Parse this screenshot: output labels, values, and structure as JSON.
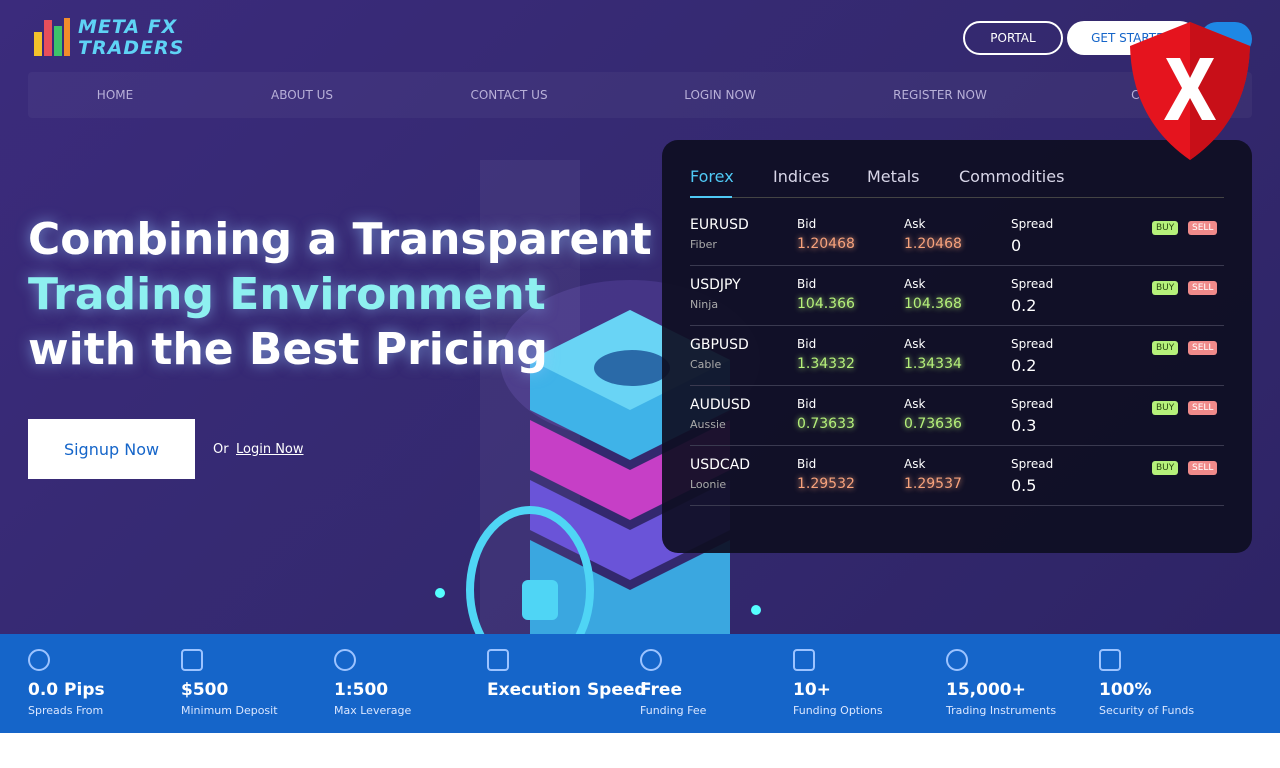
{
  "header": {
    "logo": [
      "META FX",
      "TRADERS"
    ],
    "buttons": [
      "PORTAL",
      "GET STARTED"
    ]
  },
  "nav": [
    "HOME",
    "ABOUT US",
    "CONTACT US",
    "LOGIN NOW",
    "REGISTER NOW",
    "CO"
  ],
  "hero": {
    "title": [
      "Combining a Transparent",
      "Trading Environment",
      "with the Best Pricing"
    ],
    "signup": "Signup Now",
    "or": "Or",
    "login": "Login Now"
  },
  "ticker": {
    "tabs": [
      "Forex",
      "Indices",
      "Metals",
      "Commodities"
    ],
    "labels": {
      "bid": "Bid",
      "ask": "Ask",
      "spread": "Spread",
      "buy": "BUY",
      "sell": "SELL"
    },
    "rows": [
      {
        "pair": "EURUSD",
        "nick": "Fiber",
        "bid": "1.20468",
        "ask": "1.20468",
        "spread": "0",
        "color": "#f7a27c"
      },
      {
        "pair": "USDJPY",
        "nick": "Ninja",
        "bid": "104.366",
        "ask": "104.368",
        "spread": "0.2",
        "color": "#b5f07a"
      },
      {
        "pair": "GBPUSD",
        "nick": "Cable",
        "bid": "1.34332",
        "ask": "1.34334",
        "spread": "0.2",
        "color": "#b5f07a"
      },
      {
        "pair": "AUDUSD",
        "nick": "Aussie",
        "bid": "0.73633",
        "ask": "0.73636",
        "spread": "0.3",
        "color": "#b5f07a"
      },
      {
        "pair": "USDCAD",
        "nick": "Loonie",
        "bid": "1.29532",
        "ask": "1.29537",
        "spread": "0.5",
        "color": "#f7a27c"
      }
    ]
  },
  "features": [
    {
      "value": "0.0 Pips",
      "label": "Spreads From"
    },
    {
      "value": "$500",
      "label": "Minimum Deposit"
    },
    {
      "value": "1:500",
      "label": "Max Leverage"
    },
    {
      "value": "Execution Speed"
    },
    {
      "value": "Free",
      "label": "Funding Fee"
    },
    {
      "value": "10+",
      "label": "Funding Options"
    },
    {
      "value": "15,000+",
      "label": "Trading Instruments"
    },
    {
      "value": "100%",
      "label": "Security of Funds"
    }
  ]
}
